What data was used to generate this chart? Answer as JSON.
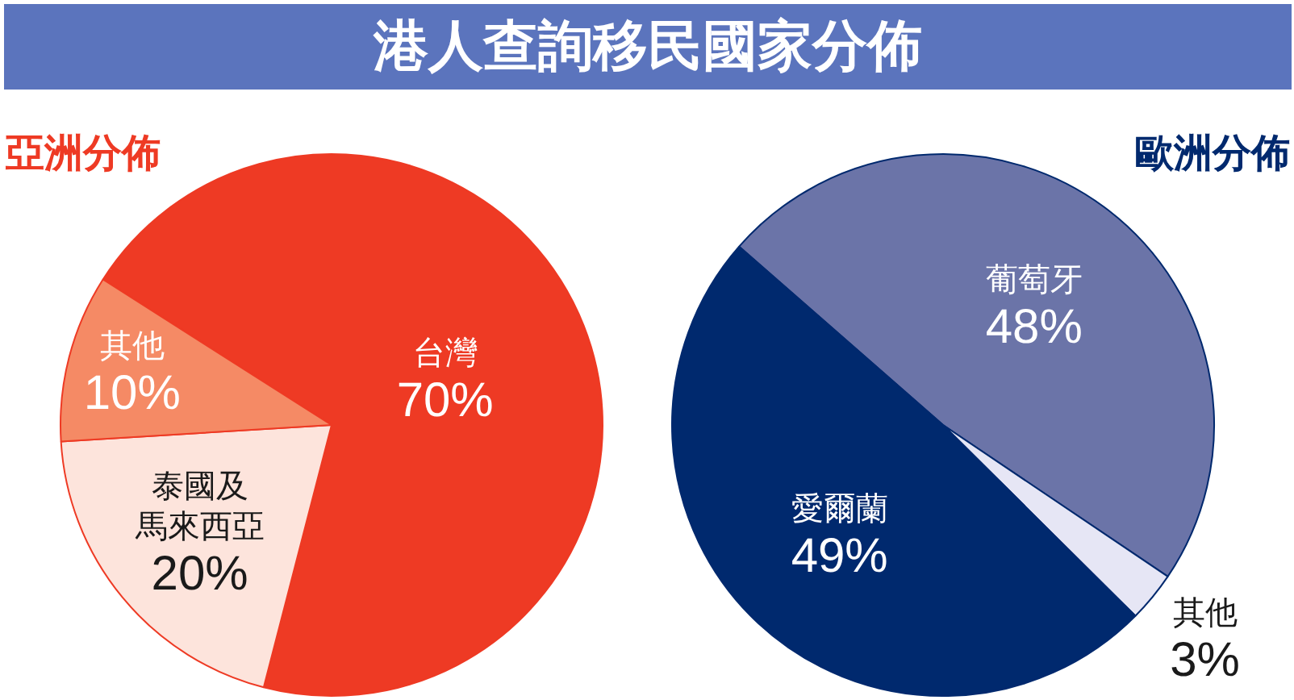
{
  "chart_data": [
    {
      "type": "other",
      "title": "港人查詢移民國家分佈"
    },
    {
      "type": "pie",
      "title": "亞洲分佈",
      "categories": [
        "台灣",
        "泰國及馬來西亞",
        "其他"
      ],
      "values": [
        70,
        20,
        10
      ],
      "value_labels": [
        "70%",
        "20%",
        "10%"
      ],
      "colors": [
        "#ee3a24",
        "#fde4dc",
        "#f58a65"
      ]
    },
    {
      "type": "pie",
      "title": "歐洲分佈",
      "categories": [
        "葡萄牙",
        "其他",
        "愛爾蘭"
      ],
      "values": [
        48,
        3,
        49
      ],
      "value_labels": [
        "48%",
        "3%",
        "49%"
      ],
      "colors": [
        "#6b74a8",
        "#e6e6f5",
        "#00296e"
      ]
    }
  ]
}
